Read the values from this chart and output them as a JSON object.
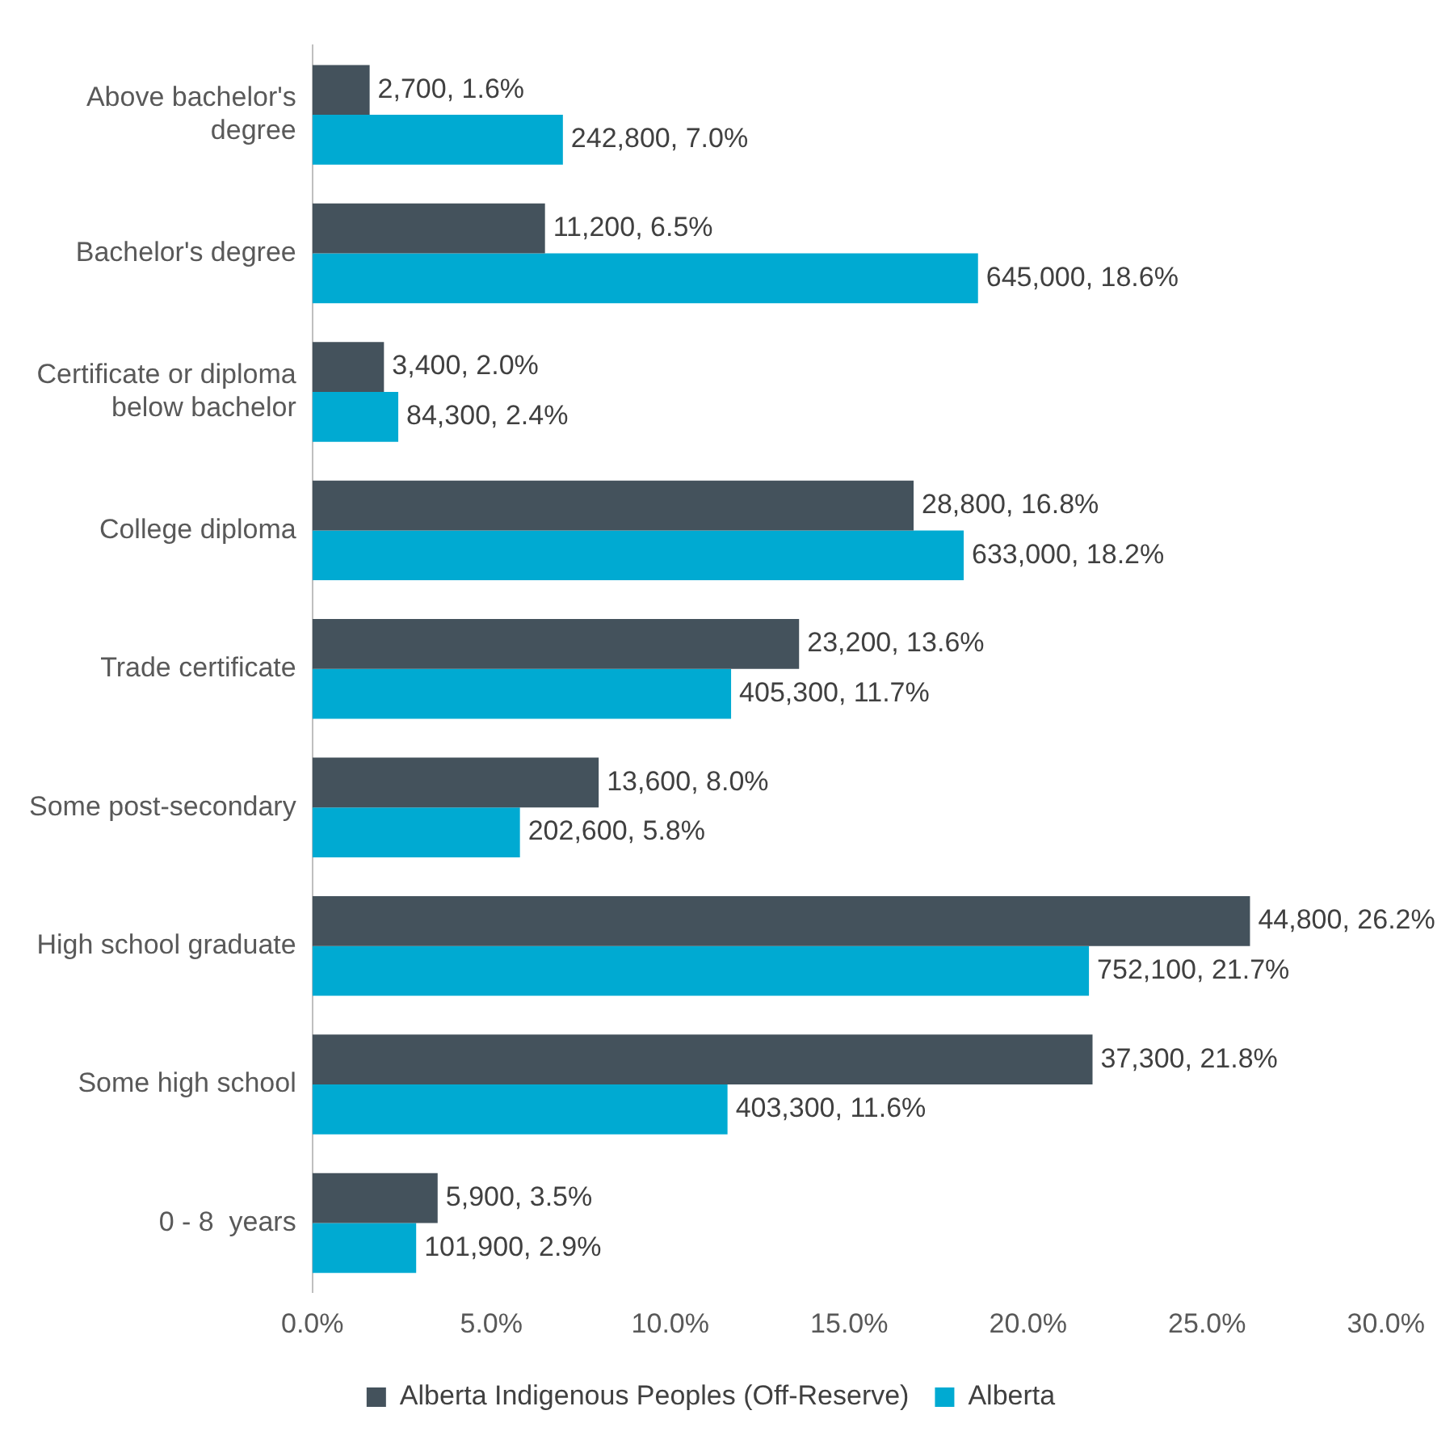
{
  "chart_data": {
    "type": "bar",
    "orientation": "horizontal",
    "categories": [
      "Above bachelor's degree",
      "Bachelor's degree",
      "Certificate or diploma below bachelor",
      "College diploma",
      "Trade certificate",
      "Some post-secondary",
      "High school graduate",
      "Some high school",
      "0 - 8  years"
    ],
    "series": [
      {
        "name": "Alberta Indigenous Peoples (Off-Reserve)",
        "color": "#44525c",
        "values": [
          1.6,
          6.5,
          2.0,
          16.8,
          13.6,
          8.0,
          26.2,
          21.8,
          3.5
        ],
        "value_labels": [
          "2,700, 1.6%",
          "11,200, 6.5%",
          "3,400, 2.0%",
          "28,800, 16.8%",
          "23,200, 13.6%",
          "13,600, 8.0%",
          "44,800, 26.2%",
          "37,300, 21.8%",
          "5,900, 3.5%"
        ]
      },
      {
        "name": "Alberta",
        "color": "#00aad2",
        "values": [
          7.0,
          18.6,
          2.4,
          18.2,
          11.7,
          5.8,
          21.7,
          11.6,
          2.9
        ],
        "value_labels": [
          "242,800, 7.0%",
          "645,000, 18.6%",
          "84,300, 2.4%",
          "633,000, 18.2%",
          "405,300, 11.7%",
          "202,600, 5.8%",
          "752,100, 21.7%",
          "403,300, 11.6%",
          "101,900, 2.9%"
        ]
      }
    ],
    "xlim": [
      0,
      30
    ],
    "xticks": [
      {
        "value": 0,
        "label": "0.0%"
      },
      {
        "value": 5,
        "label": "5.0%"
      },
      {
        "value": 10,
        "label": "10.0%"
      },
      {
        "value": 15,
        "label": "15.0%"
      },
      {
        "value": 20,
        "label": "20.0%"
      },
      {
        "value": 25,
        "label": "25.0%"
      },
      {
        "value": 30,
        "label": "30.0%"
      }
    ],
    "grid": false,
    "legend": "bottom"
  }
}
